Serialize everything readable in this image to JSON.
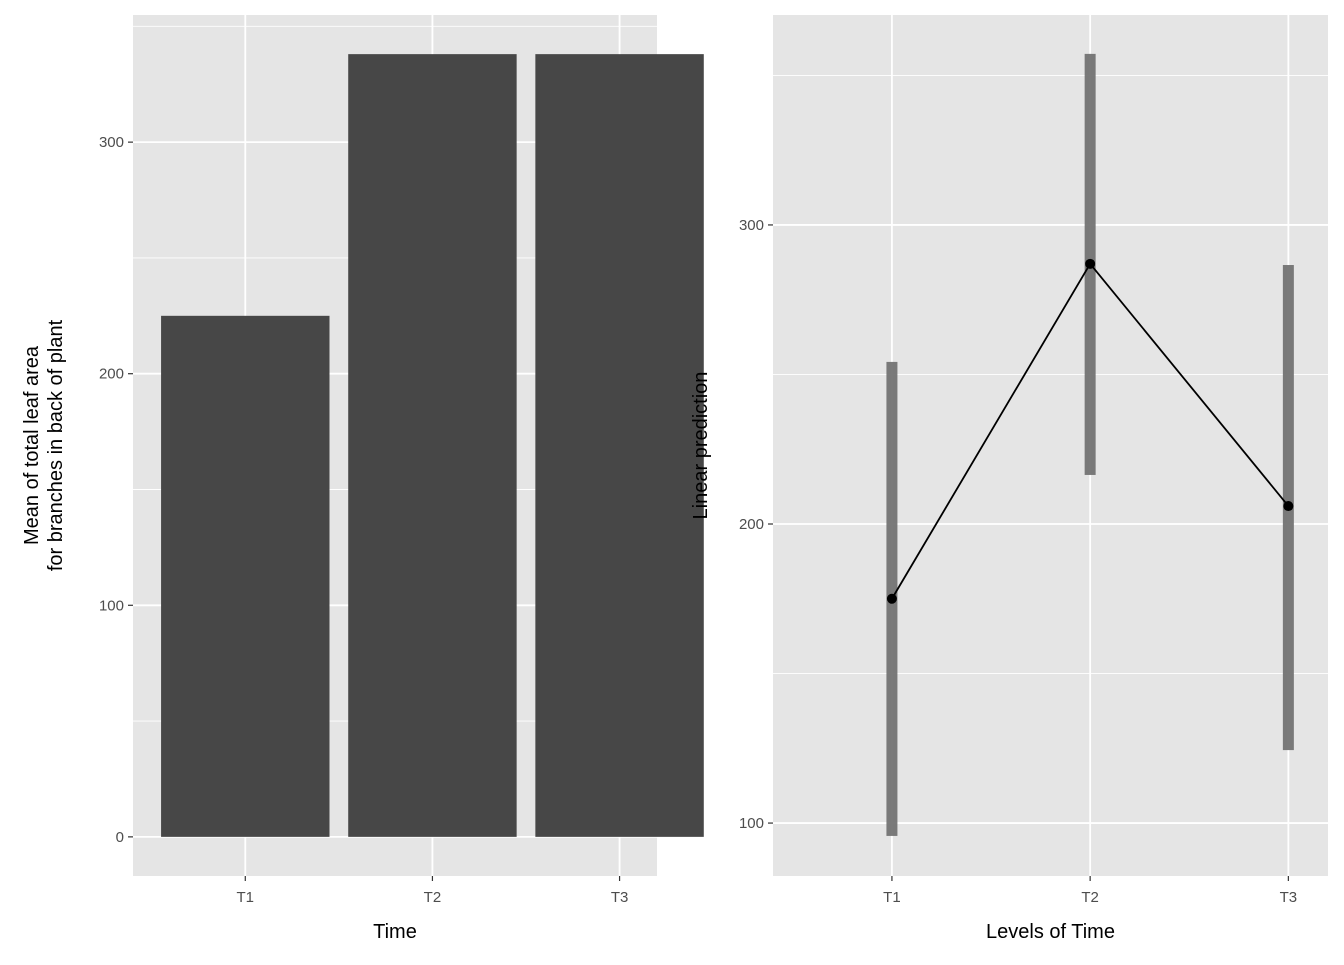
{
  "chart_data": [
    {
      "type": "bar",
      "categories": [
        "T1",
        "T2",
        "T3"
      ],
      "values": [
        225,
        338,
        338
      ],
      "xlabel": "Time",
      "ylabel": [
        "Mean of total leaf area",
        "for branches in back of plant"
      ],
      "ylim": [
        -16.9,
        354.9
      ],
      "yticks": [
        0,
        100,
        200,
        300
      ],
      "yminor": [
        50,
        150,
        250,
        350
      ],
      "grid": true,
      "bar_color": "#474747",
      "panel_color": "#e5e5e5"
    },
    {
      "type": "line",
      "categories": [
        "T1",
        "T2",
        "T3"
      ],
      "values": [
        175,
        287,
        206
      ],
      "error_low": [
        95.7,
        216.4,
        124.4
      ],
      "error_high": [
        254.2,
        357.2,
        286.6
      ],
      "xlabel": "Levels of Time",
      "ylabel": "Linear prediction",
      "ylim": [
        82.3,
        370.2
      ],
      "yticks": [
        100,
        200,
        300
      ],
      "yminor": [
        150,
        250,
        350
      ],
      "grid": true,
      "errorbar_color": "#737373",
      "line_color": "#000000",
      "panel_color": "#e5e5e5"
    }
  ]
}
